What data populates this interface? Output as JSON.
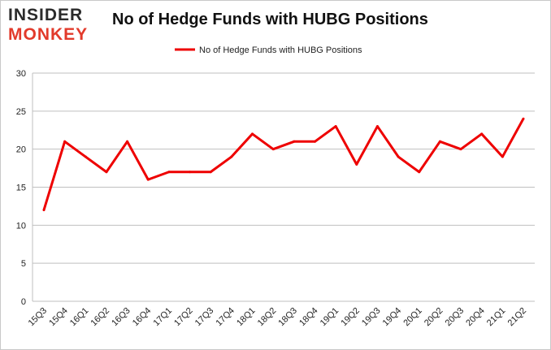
{
  "logo": {
    "line1": "INSIDER",
    "line2": "MONKEY"
  },
  "colors": {
    "series": "#ee0000",
    "grid": "#bfbfbf",
    "logo_accent": "#e23a2b"
  },
  "chart_data": {
    "type": "line",
    "title": "No of Hedge Funds with HUBG Positions",
    "xlabel": "",
    "ylabel": "",
    "ylim": [
      0,
      30
    ],
    "yticks": [
      0,
      5,
      10,
      15,
      20,
      25,
      30
    ],
    "grid": true,
    "legend_position": "top-center",
    "categories": [
      "15Q3",
      "15Q4",
      "16Q1",
      "16Q2",
      "16Q3",
      "16Q4",
      "17Q1",
      "17Q2",
      "17Q3",
      "17Q4",
      "18Q1",
      "18Q2",
      "18Q3",
      "18Q4",
      "19Q1",
      "19Q2",
      "19Q3",
      "19Q4",
      "20Q1",
      "20Q2",
      "20Q3",
      "20Q4",
      "21Q1",
      "21Q2"
    ],
    "series": [
      {
        "name": "No of Hedge Funds with HUBG Positions",
        "color": "#ee0000",
        "values": [
          12,
          21,
          19,
          17,
          21,
          16,
          17,
          17,
          17,
          19,
          22,
          20,
          21,
          21,
          23,
          18,
          23,
          19,
          17,
          21,
          20,
          22,
          19,
          24
        ]
      }
    ]
  }
}
